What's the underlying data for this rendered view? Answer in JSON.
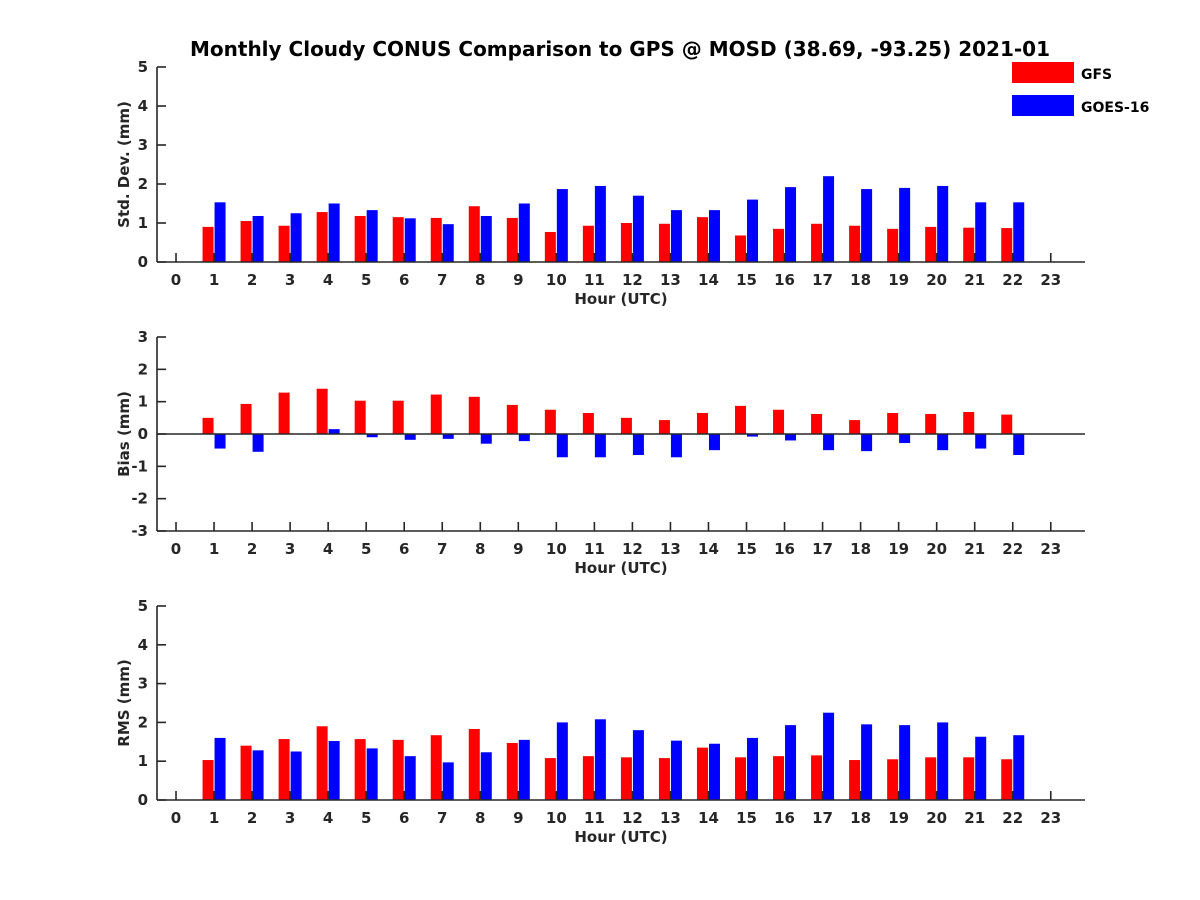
{
  "title": "Monthly Cloudy CONUS Comparison to GPS @ MOSD (38.69, -93.25) 2021-01",
  "legend": [
    {
      "name": "GFS",
      "color": "#ff0000"
    },
    {
      "name": "GOES-16",
      "color": "#0000ff"
    }
  ],
  "chart_data": [
    {
      "type": "bar",
      "ylabel": "Std. Dev. (mm)",
      "xlabel": "Hour (UTC)",
      "x": [
        0,
        1,
        2,
        3,
        4,
        5,
        6,
        7,
        8,
        9,
        10,
        11,
        12,
        13,
        14,
        15,
        16,
        17,
        18,
        19,
        20,
        21,
        22,
        23
      ],
      "xlim": [
        -0.5,
        23.9
      ],
      "ylim": [
        0,
        5
      ],
      "yticks": [
        0,
        1,
        2,
        3,
        4,
        5
      ],
      "series": [
        {
          "name": "GFS",
          "color": "#ff0000",
          "values": [
            null,
            0.9,
            1.05,
            0.93,
            1.28,
            1.18,
            1.15,
            1.13,
            1.43,
            1.13,
            0.77,
            0.93,
            1.0,
            0.98,
            1.15,
            0.68,
            0.85,
            0.98,
            0.93,
            0.85,
            0.9,
            0.88,
            0.87,
            null
          ]
        },
        {
          "name": "GOES-16",
          "color": "#0000ff",
          "values": [
            null,
            1.53,
            1.18,
            1.25,
            1.5,
            1.33,
            1.12,
            0.97,
            1.18,
            1.5,
            1.87,
            1.95,
            1.7,
            1.33,
            1.33,
            1.6,
            1.92,
            2.2,
            1.87,
            1.9,
            1.95,
            1.53,
            1.53,
            null
          ]
        }
      ]
    },
    {
      "type": "bar",
      "ylabel": "Bias (mm)",
      "xlabel": "Hour (UTC)",
      "x": [
        0,
        1,
        2,
        3,
        4,
        5,
        6,
        7,
        8,
        9,
        10,
        11,
        12,
        13,
        14,
        15,
        16,
        17,
        18,
        19,
        20,
        21,
        22,
        23
      ],
      "xlim": [
        -0.5,
        23.9
      ],
      "ylim": [
        -3,
        3
      ],
      "yticks": [
        -3,
        -2,
        -1,
        0,
        1,
        2,
        3
      ],
      "zero_line": true,
      "series": [
        {
          "name": "GFS",
          "color": "#ff0000",
          "values": [
            null,
            0.5,
            0.93,
            1.28,
            1.4,
            1.03,
            1.03,
            1.22,
            1.15,
            0.9,
            0.75,
            0.65,
            0.5,
            0.43,
            0.65,
            0.87,
            0.75,
            0.62,
            0.43,
            0.65,
            0.62,
            0.68,
            0.6,
            null
          ]
        },
        {
          "name": "GOES-16",
          "color": "#0000ff",
          "values": [
            null,
            -0.45,
            -0.55,
            null,
            0.15,
            -0.1,
            -0.18,
            -0.15,
            -0.3,
            -0.22,
            -0.72,
            -0.72,
            -0.65,
            -0.72,
            -0.5,
            -0.08,
            -0.2,
            -0.5,
            -0.53,
            -0.28,
            -0.5,
            -0.45,
            -0.65,
            null
          ]
        }
      ]
    },
    {
      "type": "bar",
      "ylabel": "RMS (mm)",
      "xlabel": "Hour (UTC)",
      "x": [
        0,
        1,
        2,
        3,
        4,
        5,
        6,
        7,
        8,
        9,
        10,
        11,
        12,
        13,
        14,
        15,
        16,
        17,
        18,
        19,
        20,
        21,
        22,
        23
      ],
      "xlim": [
        -0.5,
        23.9
      ],
      "ylim": [
        0,
        5
      ],
      "yticks": [
        0,
        1,
        2,
        3,
        4,
        5
      ],
      "series": [
        {
          "name": "GFS",
          "color": "#ff0000",
          "values": [
            null,
            1.03,
            1.4,
            1.57,
            1.9,
            1.57,
            1.55,
            1.67,
            1.83,
            1.47,
            1.08,
            1.13,
            1.1,
            1.08,
            1.35,
            1.1,
            1.13,
            1.15,
            1.03,
            1.05,
            1.1,
            1.1,
            1.05,
            null
          ]
        },
        {
          "name": "GOES-16",
          "color": "#0000ff",
          "values": [
            null,
            1.6,
            1.28,
            1.25,
            1.52,
            1.33,
            1.13,
            0.97,
            1.23,
            1.55,
            2.0,
            2.08,
            1.8,
            1.53,
            1.45,
            1.6,
            1.93,
            2.25,
            1.95,
            1.93,
            2.0,
            1.63,
            1.67,
            null
          ]
        }
      ]
    }
  ]
}
